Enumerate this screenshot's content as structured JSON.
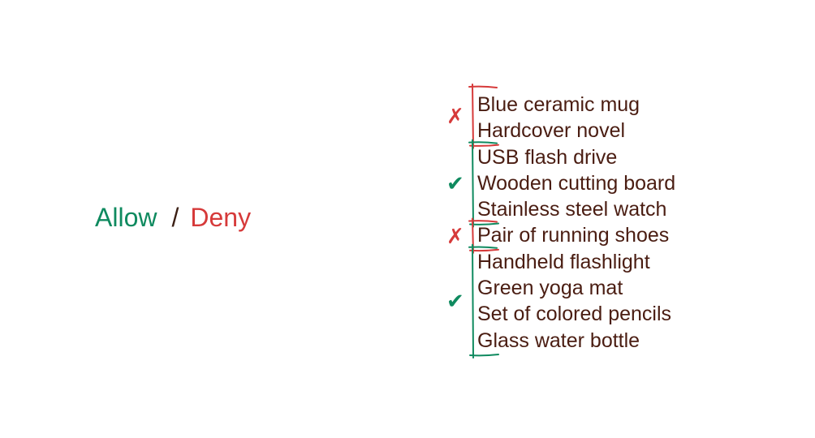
{
  "legend": {
    "allow_label": "Allow",
    "separator": "/",
    "deny_label": "Deny"
  },
  "colors": {
    "allow": "#0f8a5f",
    "deny": "#d63a3a",
    "text": "#4a1d12"
  },
  "items": [
    "Blue ceramic mug",
    "Hardcover novel",
    "USB flash drive",
    "Wooden cutting board",
    "Stainless steel watch",
    "Pair of running shoes",
    "Handheld flashlight",
    "Green yoga mat",
    "Set of colored pencils",
    "Glass water bottle"
  ],
  "groups": [
    {
      "verdict": "deny",
      "mark": "✗",
      "items": [
        "Blue ceramic mug",
        "Hardcover novel"
      ]
    },
    {
      "verdict": "allow",
      "mark": "✔",
      "items": [
        "USB flash drive",
        "Wooden cutting board",
        "Stainless steel watch"
      ]
    },
    {
      "verdict": "deny",
      "mark": "✗",
      "items": [
        "Pair of running shoes"
      ]
    },
    {
      "verdict": "allow",
      "mark": "✔",
      "items": [
        "Handheld flashlight",
        "Green yoga mat",
        "Set of colored pencils",
        "Glass water bottle"
      ]
    }
  ]
}
